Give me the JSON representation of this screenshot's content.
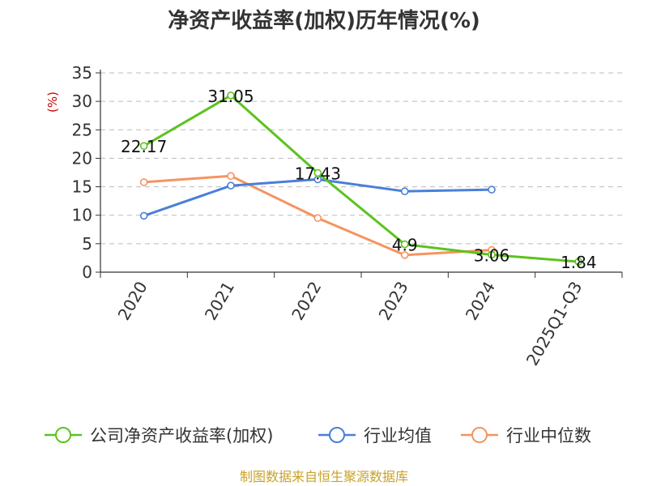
{
  "chart_data": {
    "type": "line",
    "title": "净资产收益率(加权)历年情况(%)",
    "ylabel": "(%)",
    "categories": [
      "2020",
      "2021",
      "2022",
      "2023",
      "2024",
      "2025Q1-Q3"
    ],
    "ylim": [
      0,
      35
    ],
    "yticks": [
      0,
      5,
      10,
      15,
      20,
      25,
      30,
      35
    ],
    "grid": true,
    "legend_position": "bottom",
    "series": [
      {
        "name": "公司净资产收益率(加权)",
        "color": "#5cc31e",
        "values": [
          22.17,
          31.05,
          17.43,
          4.9,
          3.06,
          1.84
        ],
        "labels": [
          "22.17",
          "31.05",
          "17.43",
          "4.9",
          "3.06",
          "1.84"
        ]
      },
      {
        "name": "行业均值",
        "color": "#4a7fd8",
        "values": [
          9.9,
          15.2,
          16.3,
          14.2,
          14.5,
          null
        ]
      },
      {
        "name": "行业中位数",
        "color": "#f59460",
        "values": [
          15.8,
          16.9,
          9.5,
          3.0,
          3.9,
          null
        ]
      }
    ],
    "source": "制图数据来自恒生聚源数据库"
  }
}
